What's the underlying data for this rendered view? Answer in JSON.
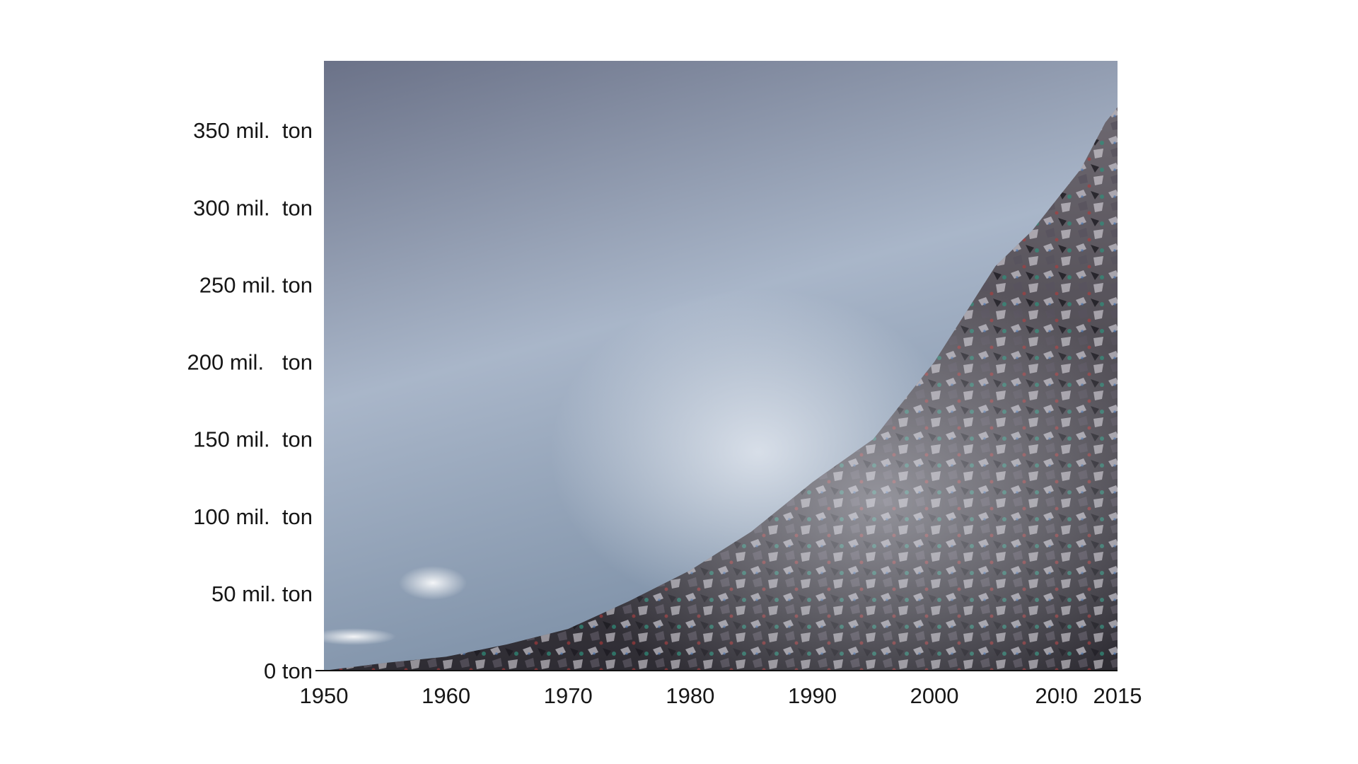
{
  "chart_data": {
    "type": "area",
    "title": "",
    "xlabel": "",
    "ylabel": "",
    "x_ticks": [
      {
        "value": 1950,
        "label": "1950"
      },
      {
        "value": 1960,
        "label": "1960"
      },
      {
        "value": 1970,
        "label": "1970"
      },
      {
        "value": 1980,
        "label": "1980"
      },
      {
        "value": 1990,
        "label": "1990"
      },
      {
        "value": 2000,
        "label": "2000"
      },
      {
        "value": 2010,
        "label": "20!0"
      },
      {
        "value": 2015,
        "label": "2015"
      }
    ],
    "y_ticks": [
      {
        "value": 0,
        "label": "0 ton"
      },
      {
        "value": 50,
        "label": "50 mil. ton"
      },
      {
        "value": 100,
        "label": "100 mil.  ton"
      },
      {
        "value": 150,
        "label": "150 mil.  ton"
      },
      {
        "value": 200,
        "label": "200 mil.   ton"
      },
      {
        "value": 250,
        "label": "250 mil. ton"
      },
      {
        "value": 300,
        "label": "300 mil.  ton"
      },
      {
        "value": 350,
        "label": "350 mil.  ton"
      }
    ],
    "xlim": [
      1950,
      2015
    ],
    "ylim": [
      0,
      395
    ],
    "grid": false,
    "legend": "none",
    "series": [
      {
        "x": [
          1950,
          1953,
          1955,
          1960,
          1965,
          1970,
          1975,
          1980,
          1985,
          1990,
          1995,
          2000,
          2005,
          2008,
          2010,
          2012,
          2014,
          2015
        ],
        "y": [
          0,
          3,
          5,
          9,
          17,
          27,
          45,
          65,
          90,
          122,
          150,
          200,
          262,
          285,
          305,
          325,
          355,
          365
        ]
      }
    ],
    "colors": {
      "sky_top": "#6b7288",
      "sky_mid": "#a9b6c9",
      "sky_bottom": "#7c8fa6",
      "mound_dark": "#2e2c33",
      "mound_mid": "#6d6870",
      "mound_light": "#d9dbe3",
      "axis": "#111111"
    }
  }
}
